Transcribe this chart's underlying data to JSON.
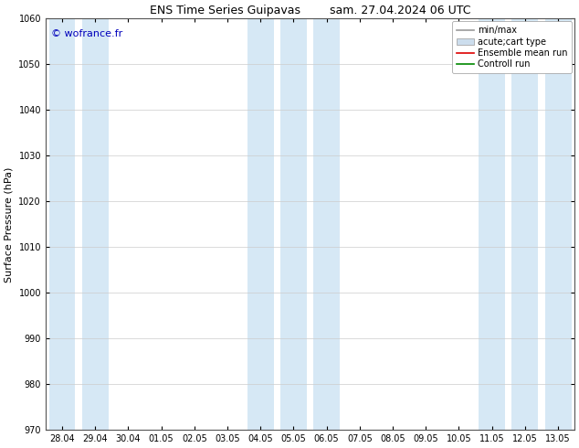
{
  "title_left": "ENS Time Series Guipavas",
  "title_right": "sam. 27.04.2024 06 UTC",
  "ylabel": "Surface Pressure (hPa)",
  "ylim": [
    970,
    1060
  ],
  "yticks": [
    970,
    980,
    990,
    1000,
    1010,
    1020,
    1030,
    1040,
    1050,
    1060
  ],
  "x_labels": [
    "28.04",
    "29.04",
    "30.04",
    "01.05",
    "02.05",
    "03.05",
    "04.05",
    "05.05",
    "06.05",
    "07.05",
    "08.05",
    "09.05",
    "10.05",
    "11.05",
    "12.05",
    "13.05"
  ],
  "copyright_text": "© wofrance.fr",
  "copyright_color": "#0000bb",
  "shaded_bands_color": "#d6e8f5",
  "shaded_x_indices": [
    0,
    1,
    6,
    7,
    8,
    13,
    14,
    15
  ],
  "legend_labels": [
    "min/max",
    "acute;cart type",
    "Ensemble mean run",
    "Controll run"
  ],
  "legend_line_color": "#999999",
  "legend_patch_color": "#ccdded",
  "legend_red": "#dd0000",
  "legend_green": "#008800",
  "background_color": "#ffffff",
  "plot_bg_color": "#ffffff",
  "grid_color": "#cccccc",
  "title_fontsize": 9,
  "ylabel_fontsize": 8,
  "tick_fontsize": 7,
  "copyright_fontsize": 8,
  "legend_fontsize": 7
}
